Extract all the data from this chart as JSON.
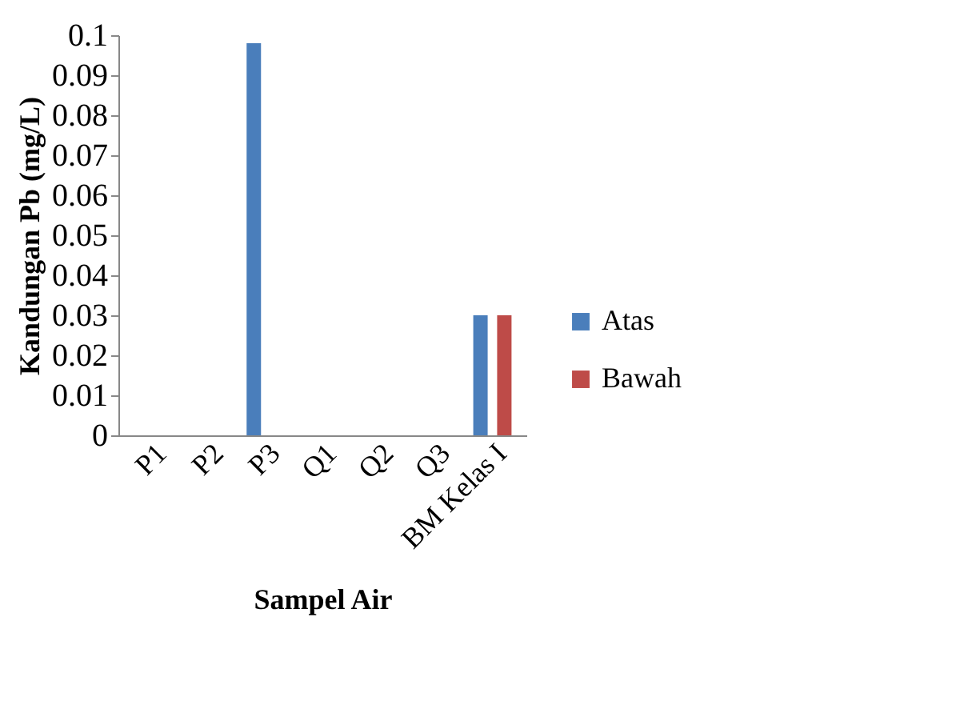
{
  "chart_data": {
    "type": "bar",
    "xlabel": "Sampel Air",
    "ylabel": "Kandungan Pb (mg/L)",
    "categories": [
      "P1",
      "P2",
      "P3",
      "Q1",
      "Q2",
      "Q3",
      "BM Kelas I"
    ],
    "series": [
      {
        "name": "Atas",
        "color": "#4a7ebb",
        "values": [
          0,
          0,
          0.098,
          0,
          0,
          0,
          0.03
        ]
      },
      {
        "name": "Bawah",
        "color": "#be4b48",
        "values": [
          0,
          0,
          0,
          0,
          0,
          0,
          0.03
        ]
      }
    ],
    "ylim": [
      0,
      0.1
    ],
    "yticks": [
      0,
      0.01,
      0.02,
      0.03,
      0.04,
      0.05,
      0.06,
      0.07,
      0.08,
      0.09,
      0.1
    ],
    "grid": false,
    "legend": "right"
  }
}
